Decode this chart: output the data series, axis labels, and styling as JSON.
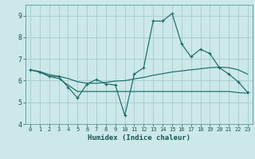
{
  "xlabel": "Humidex (Indice chaleur)",
  "bg_color": "#cce8e8",
  "grid_color": "#aacfcf",
  "line_color": "#1a6b6b",
  "xlim": [
    -0.5,
    23.5
  ],
  "ylim": [
    4,
    9.5
  ],
  "xticks": [
    0,
    1,
    2,
    3,
    4,
    5,
    6,
    7,
    8,
    9,
    10,
    11,
    12,
    13,
    14,
    15,
    16,
    17,
    18,
    19,
    20,
    21,
    22,
    23
  ],
  "yticks": [
    4,
    5,
    6,
    7,
    8,
    9
  ],
  "line1_x": [
    0,
    1,
    2,
    3,
    4,
    5,
    6,
    7,
    8,
    9,
    10,
    11,
    12,
    13,
    14,
    15,
    16,
    17,
    18,
    19,
    20,
    21,
    22,
    23
  ],
  "line1_y": [
    6.5,
    6.4,
    6.2,
    6.2,
    5.7,
    5.2,
    5.85,
    6.05,
    5.85,
    5.8,
    4.4,
    6.3,
    6.6,
    8.75,
    8.75,
    9.1,
    7.7,
    7.1,
    7.45,
    7.25,
    6.6,
    6.3,
    5.95,
    5.45
  ],
  "line2_x": [
    0,
    1,
    2,
    3,
    4,
    5,
    6,
    7,
    8,
    9,
    10,
    11,
    12,
    13,
    14,
    15,
    16,
    17,
    18,
    19,
    20,
    21,
    22,
    23
  ],
  "line2_y": [
    6.5,
    6.42,
    6.28,
    6.2,
    6.1,
    5.95,
    5.88,
    5.88,
    5.92,
    5.98,
    6.0,
    6.08,
    6.15,
    6.25,
    6.32,
    6.4,
    6.45,
    6.5,
    6.55,
    6.6,
    6.62,
    6.6,
    6.5,
    6.3
  ],
  "line3_x": [
    0,
    1,
    2,
    3,
    4,
    5,
    6,
    7,
    8,
    9,
    10,
    11,
    12,
    13,
    14,
    15,
    16,
    17,
    18,
    19,
    20,
    21,
    22,
    23
  ],
  "line3_y": [
    6.5,
    6.4,
    6.2,
    6.1,
    5.8,
    5.5,
    5.5,
    5.5,
    5.5,
    5.5,
    5.5,
    5.5,
    5.5,
    5.5,
    5.5,
    5.5,
    5.5,
    5.5,
    5.5,
    5.5,
    5.5,
    5.5,
    5.45,
    5.42
  ]
}
